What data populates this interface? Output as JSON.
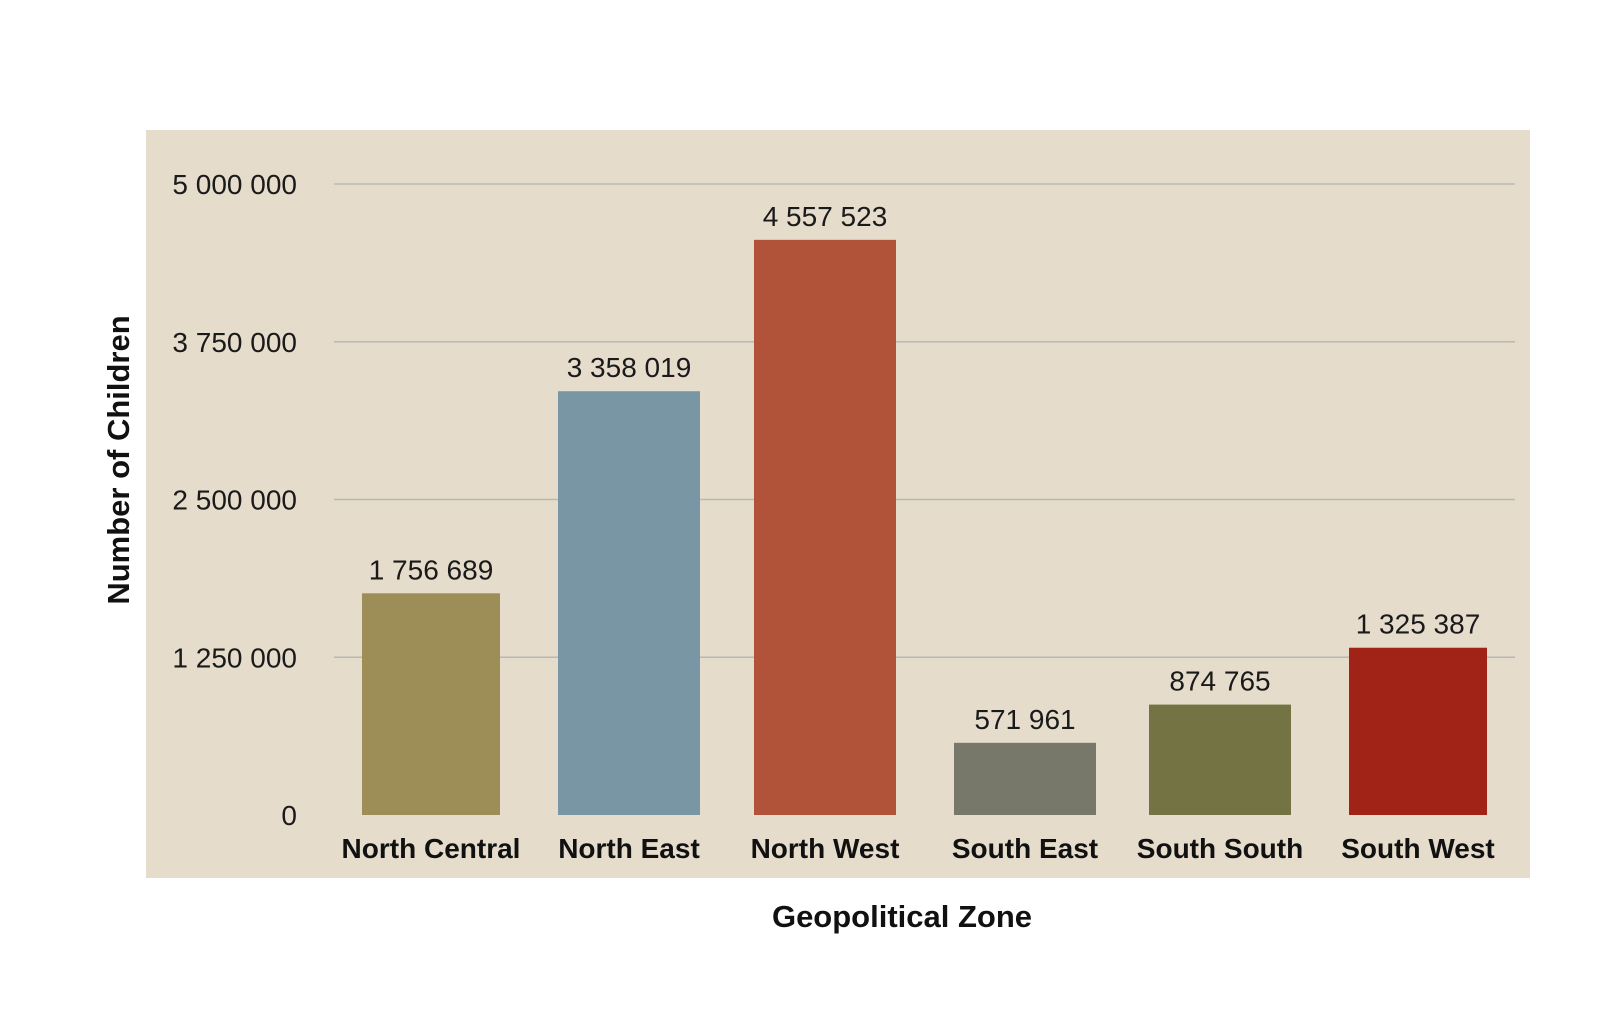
{
  "chart_data": {
    "type": "bar",
    "title": "",
    "xlabel": "Geopolitical Zone",
    "ylabel": "Number of Children",
    "categories": [
      "North Central",
      "North East",
      "North West",
      "South East",
      "South South",
      "South West"
    ],
    "values": [
      1756689,
      3358019,
      4557523,
      571961,
      874765,
      1325387
    ],
    "value_labels": [
      "1 756 689",
      "3 358 019",
      "4 557 523",
      "571 961",
      "874 765",
      "1 325 387"
    ],
    "bar_colors": [
      "#9c8e56",
      "#7896a3",
      "#b05339",
      "#77776a",
      "#737343",
      "#a12216"
    ],
    "ylim": [
      0,
      5000000
    ],
    "yticks": [
      0,
      1250000,
      2500000,
      3750000,
      5000000
    ],
    "ytick_labels": [
      "0",
      "1 250 000",
      "2 500 000",
      "3 750 000",
      "5 000 000"
    ],
    "grid": true,
    "legend": "none",
    "plot_background": "#e5dccb"
  }
}
